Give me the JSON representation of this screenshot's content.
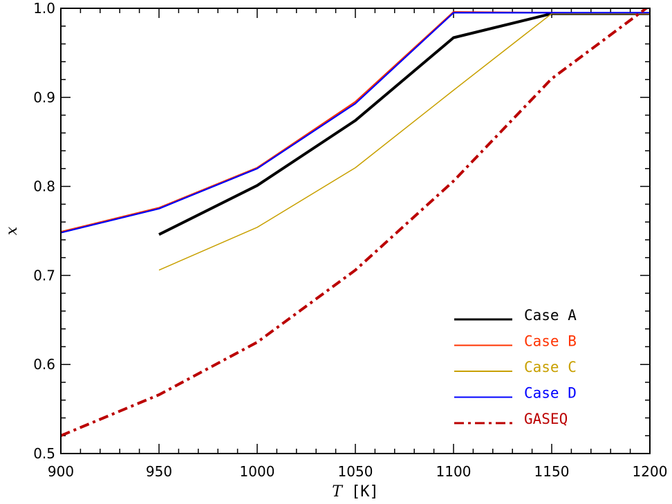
{
  "chart_data": {
    "type": "line",
    "title": "",
    "xlabel_var": "T",
    "xlabel_unit": "[K]",
    "ylabel": "x",
    "xlim": [
      900,
      1200
    ],
    "ylim": [
      0.5,
      1.0
    ],
    "xticks": [
      900,
      950,
      1000,
      1050,
      1100,
      1150,
      1200
    ],
    "yticks": [
      0.5,
      0.6,
      0.7,
      0.8,
      0.9,
      1.0
    ],
    "xtick_labels": [
      "900",
      "950",
      "1000",
      "1050",
      "1100",
      "1150",
      "1200"
    ],
    "ytick_labels": [
      "0.5",
      "0.6",
      "0.7",
      "0.8",
      "0.9",
      "1.0"
    ],
    "grid": false,
    "legend_position": "bottom-right",
    "series": [
      {
        "name": "Case A",
        "color": "#000000",
        "style": "solid",
        "weight": "thick",
        "x": [
          950,
          1000,
          1050,
          1100,
          1150,
          1200
        ],
        "y": [
          0.746,
          0.801,
          0.874,
          0.967,
          0.994,
          0.994
        ]
      },
      {
        "name": "Case B",
        "color": "#ff3300",
        "style": "solid",
        "weight": "normal",
        "x": [
          900,
          950,
          1000,
          1050,
          1100,
          1150,
          1200
        ],
        "y": [
          0.749,
          0.776,
          0.821,
          0.895,
          0.996,
          0.995,
          0.994
        ]
      },
      {
        "name": "Case C",
        "color": "#c8a000",
        "style": "solid",
        "weight": "thin",
        "x": [
          950,
          1000,
          1050,
          1100,
          1150,
          1200
        ],
        "y": [
          0.706,
          0.754,
          0.821,
          0.908,
          0.994,
          0.994
        ]
      },
      {
        "name": "Case D",
        "color": "#0000ff",
        "style": "solid",
        "weight": "normal",
        "x": [
          900,
          950,
          1000,
          1050,
          1100,
          1150,
          1200
        ],
        "y": [
          0.748,
          0.775,
          0.82,
          0.893,
          0.995,
          0.995,
          0.995
        ]
      },
      {
        "name": "GASEQ",
        "color": "#bb0000",
        "style": "dash-dot",
        "weight": "thick",
        "x": [
          900,
          950,
          1000,
          1050,
          1100,
          1150,
          1200
        ],
        "y": [
          0.52,
          0.566,
          0.625,
          0.706,
          0.806,
          0.921,
          1.003
        ]
      }
    ]
  }
}
